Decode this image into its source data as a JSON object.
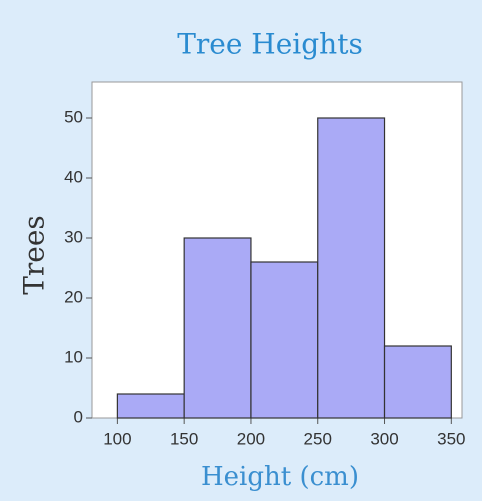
{
  "chart_data": {
    "type": "histogram",
    "title": "Tree Heights",
    "xlabel": "Height (cm)",
    "ylabel": "Trees",
    "bins": [
      100,
      150,
      200,
      250,
      300,
      350
    ],
    "values": [
      4,
      30,
      26,
      50,
      12
    ],
    "color": "#aaaaf6",
    "xlim": [
      81,
      358
    ],
    "ylim": [
      0,
      56
    ],
    "xticks": [
      100,
      150,
      200,
      250,
      300,
      350
    ],
    "yticks": [
      0,
      10,
      20,
      30,
      40,
      50
    ],
    "grid": false
  }
}
